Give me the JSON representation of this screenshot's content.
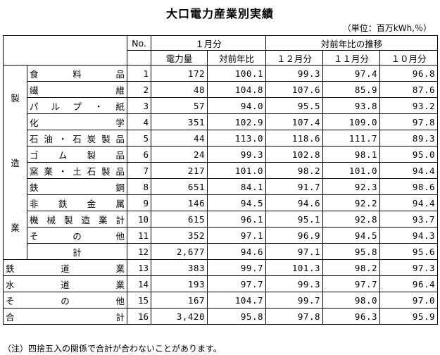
{
  "title": "大口電力産業別実績",
  "unit": "（単位：百万kWh,％）",
  "header": {
    "no": "No.",
    "jan": "１月分",
    "trend": "対前年比の推移",
    "power": "電力量",
    "yoy": "対前年比",
    "dec": "１２月分",
    "nov": "１１月分",
    "oct": "１０月分"
  },
  "group_label": [
    "製",
    "造",
    "業"
  ],
  "rows": [
    {
      "name": "食　料　品",
      "no": "1",
      "power": "172",
      "yoy": "100.1",
      "dec": "99.3",
      "nov": "97.4",
      "oct": "96.8"
    },
    {
      "name": "繊　　　維",
      "no": "2",
      "power": "48",
      "yoy": "104.8",
      "dec": "107.6",
      "nov": "85.9",
      "oct": "87.6"
    },
    {
      "name": "パルプ・紙",
      "no": "3",
      "power": "57",
      "yoy": "94.0",
      "dec": "95.5",
      "nov": "93.8",
      "oct": "93.2"
    },
    {
      "name": "化　　　学",
      "no": "4",
      "power": "351",
      "yoy": "102.9",
      "dec": "107.4",
      "nov": "109.0",
      "oct": "97.8"
    },
    {
      "name": "石油・石炭製品",
      "no": "5",
      "power": "44",
      "yoy": "113.0",
      "dec": "118.6",
      "nov": "111.7",
      "oct": "89.3"
    },
    {
      "name": "ゴム製品",
      "no": "6",
      "power": "24",
      "yoy": "99.3",
      "dec": "102.8",
      "nov": "98.1",
      "oct": "95.0"
    },
    {
      "name": "窯業・土石製品",
      "no": "7",
      "power": "217",
      "yoy": "101.0",
      "dec": "98.2",
      "nov": "101.0",
      "oct": "94.4"
    },
    {
      "name": "鉄　　　鋼",
      "no": "8",
      "power": "651",
      "yoy": "84.1",
      "dec": "91.7",
      "nov": "92.3",
      "oct": "98.6"
    },
    {
      "name": "非鉄金属",
      "no": "9",
      "power": "146",
      "yoy": "94.5",
      "dec": "94.6",
      "nov": "92.2",
      "oct": "94.4"
    },
    {
      "name": "機械製造業計",
      "no": "10",
      "power": "615",
      "yoy": "96.1",
      "dec": "95.1",
      "nov": "92.8",
      "oct": "93.7"
    },
    {
      "name": "その他",
      "no": "11",
      "power": "352",
      "yoy": "97.1",
      "dec": "96.9",
      "nov": "94.5",
      "oct": "94.3"
    }
  ],
  "subtotal": {
    "name": "計",
    "no": "12",
    "power": "2,677",
    "yoy": "94.6",
    "dec": "97.1",
    "nov": "95.8",
    "oct": "95.6"
  },
  "others": [
    {
      "name": "鉄　道　業",
      "no": "13",
      "power": "383",
      "yoy": "99.7",
      "dec": "101.3",
      "nov": "98.2",
      "oct": "97.3"
    },
    {
      "name": "水　道　業",
      "no": "14",
      "power": "193",
      "yoy": "97.7",
      "dec": "99.3",
      "nov": "97.7",
      "oct": "96.4"
    },
    {
      "name": "そ　の　他",
      "no": "15",
      "power": "167",
      "yoy": "104.7",
      "dec": "99.7",
      "nov": "98.0",
      "oct": "97.0"
    },
    {
      "name": "合　　　計",
      "no": "16",
      "power": "3,420",
      "yoy": "95.8",
      "dec": "97.8",
      "nov": "96.3",
      "oct": "95.9"
    }
  ],
  "note": "（注）四捨五入の関係で合計が合わないことがあります。"
}
